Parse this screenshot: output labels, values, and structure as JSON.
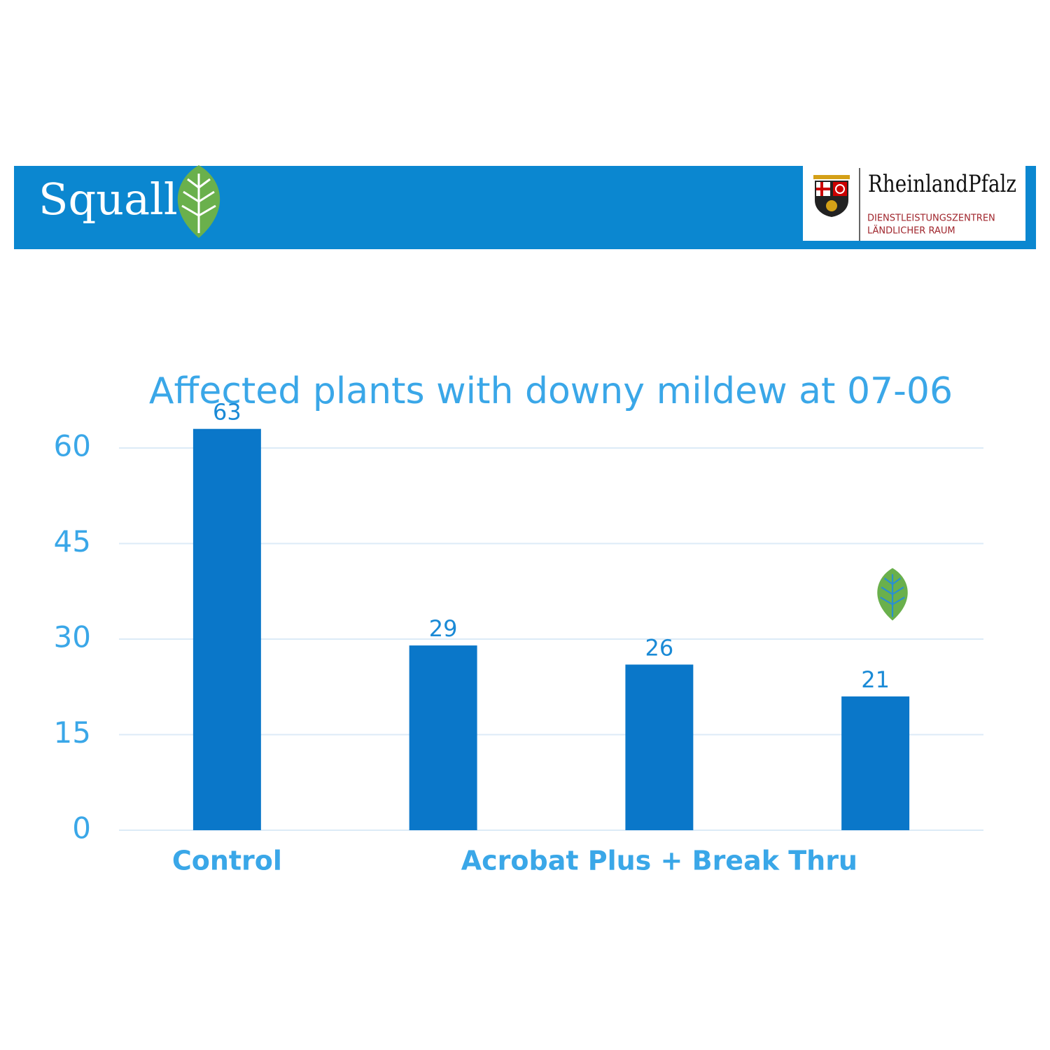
{
  "header": {
    "brand": "Squall",
    "partner": "RheinlandPfalz",
    "partner_lines": [
      "DIENSTLEISTUNGSZENTREN",
      "LÄNDLICHER RAUM"
    ]
  },
  "chart_data": {
    "type": "bar",
    "title": "Affected plants with downy mildew at 07-06",
    "categories": [
      "Control",
      null,
      "Acrobat Plus + Break Thru",
      null
    ],
    "values": [
      63,
      29,
      26,
      21
    ],
    "color": "#0a77c9",
    "data_labels": true,
    "ylim": [
      0,
      60
    ],
    "yticks": [
      0,
      15,
      30,
      45,
      60
    ],
    "grid": true
  }
}
